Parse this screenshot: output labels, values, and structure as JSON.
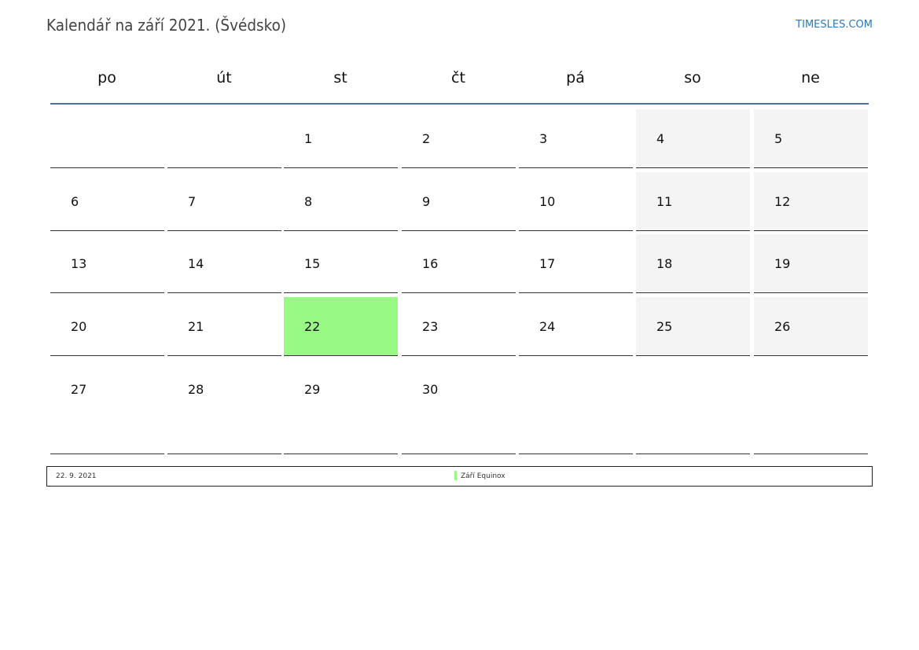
{
  "title": "Kalendář na září 2021. (Švédsko)",
  "site": "TIMESLES.COM",
  "weekdays": [
    "po",
    "út",
    "st",
    "čt",
    "pá",
    "so",
    "ne"
  ],
  "weeks": [
    [
      "",
      "",
      "1",
      "2",
      "3",
      "4",
      "5"
    ],
    [
      "6",
      "7",
      "8",
      "9",
      "10",
      "11",
      "12"
    ],
    [
      "13",
      "14",
      "15",
      "16",
      "17",
      "18",
      "19"
    ],
    [
      "20",
      "21",
      "22",
      "23",
      "24",
      "25",
      "26"
    ],
    [
      "27",
      "28",
      "29",
      "30",
      "",
      "",
      ""
    ]
  ],
  "weekend_color": "#f4f4f4",
  "holiday_color": "#99f985",
  "holidays": [
    {
      "date": "22. 9. 2021",
      "day": "22",
      "name": "Září Equinox"
    }
  ]
}
